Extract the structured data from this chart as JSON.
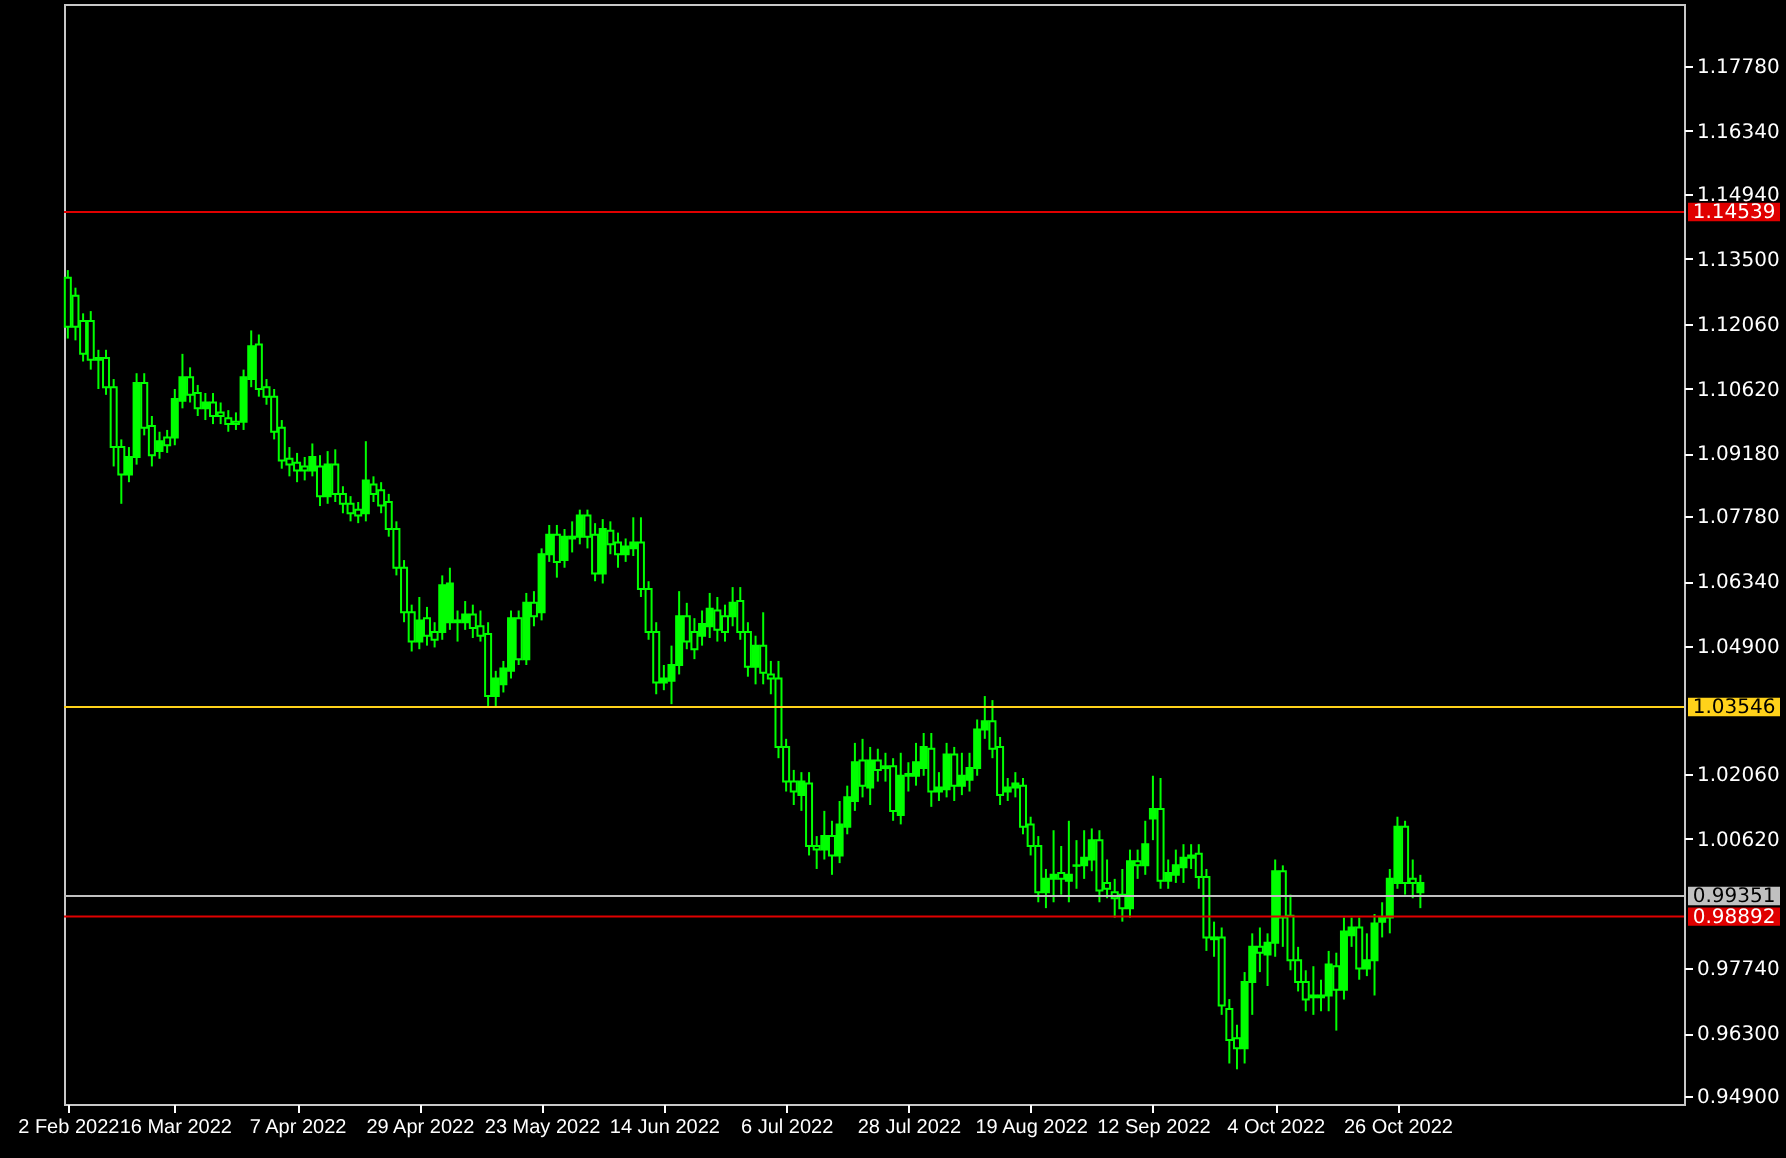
{
  "chart_data": {
    "type": "candlestick",
    "color": "#00ff00",
    "categories": [
      "2 Feb 2022",
      null,
      null,
      null,
      null,
      null,
      null,
      null,
      null,
      null,
      null,
      null,
      null,
      null,
      "16 Mar 2022",
      null,
      null,
      null,
      null,
      null,
      null,
      null,
      null,
      null,
      null,
      null,
      null,
      null,
      null,
      null,
      "7 Apr 2022",
      null,
      null,
      null,
      null,
      null,
      null,
      null,
      null,
      null,
      null,
      null,
      null,
      null,
      null,
      null,
      "29 Apr 2022",
      null,
      null,
      null,
      null,
      null,
      null,
      null,
      null,
      null,
      null,
      null,
      null,
      null,
      null,
      null,
      "23 May 2022",
      null,
      null,
      null,
      null,
      null,
      null,
      null,
      null,
      null,
      null,
      null,
      null,
      null,
      null,
      null,
      "14 Jun 2022",
      null,
      null,
      null,
      null,
      null,
      null,
      null,
      null,
      null,
      null,
      null,
      null,
      null,
      null,
      null,
      "6 Jul 2022",
      null,
      null,
      null,
      null,
      null,
      null,
      null,
      null,
      null,
      null,
      null,
      null,
      null,
      null,
      null,
      "28 Jul 2022",
      null,
      null,
      null,
      null,
      null,
      null,
      null,
      null,
      null,
      null,
      null,
      null,
      null,
      null,
      null,
      "19 Aug 2022",
      null,
      null,
      null,
      null,
      null,
      null,
      null,
      null,
      null,
      null,
      null,
      null,
      null,
      null,
      null,
      "12 Sep 2022",
      null,
      null,
      null,
      null,
      null,
      null,
      null,
      null,
      null,
      null,
      null,
      null,
      null,
      null,
      null,
      "4 Oct 2022",
      null,
      null,
      null,
      null,
      null,
      null,
      null,
      null,
      null,
      null,
      null,
      null,
      null,
      null,
      null,
      "26 Oct 2022",
      null,
      null,
      null,
      null,
      null,
      null,
      null,
      null,
      null,
      null,
      null,
      null,
      null,
      null,
      null,
      null,
      null,
      null,
      null,
      null,
      null,
      null,
      null,
      null,
      null,
      null,
      null,
      null,
      null,
      null,
      null,
      null,
      null,
      null,
      null,
      null,
      null
    ],
    "ohlc": [
      [
        1.1308,
        1.1325,
        1.1173,
        1.1199
      ],
      [
        1.1268,
        1.1286,
        1.1169,
        1.1199
      ],
      [
        1.1212,
        1.1229,
        1.1122,
        1.1139
      ],
      [
        1.1212,
        1.1234,
        1.1104,
        1.1126
      ],
      [
        1.113,
        1.1148,
        1.1061,
        1.1126
      ],
      [
        1.113,
        1.1148,
        1.1048,
        1.1065
      ],
      [
        1.1065,
        1.1083,
        1.0889,
        1.0932
      ],
      [
        1.0932,
        1.0949,
        1.0806,
        1.0871
      ],
      [
        1.0871,
        1.0932,
        1.0854,
        1.091
      ],
      [
        1.091,
        1.1096,
        1.0893,
        1.1074
      ],
      [
        1.1074,
        1.1096,
        1.0958,
        1.0975
      ],
      [
        1.0979,
        1.1001,
        1.0889,
        1.0914
      ],
      [
        1.0923,
        1.0966,
        1.0906,
        1.0945
      ],
      [
        1.0953,
        1.097,
        1.0919,
        1.0936
      ],
      [
        1.0953,
        1.1061,
        1.0936,
        1.1039
      ],
      [
        1.1035,
        1.1139,
        1.1018,
        1.1087
      ],
      [
        1.1087,
        1.1109,
        1.1031,
        1.1048
      ],
      [
        1.1052,
        1.107,
        1.1001,
        1.1018
      ],
      [
        1.1018,
        1.1052,
        1.0992,
        1.1031
      ],
      [
        1.1031,
        1.1052,
        1.0983,
        1.1001
      ],
      [
        1.1009,
        1.1031,
        1.0983,
        1.1001
      ],
      [
        1.0996,
        1.1014,
        1.0966,
        1.0983
      ],
      [
        1.0988,
        1.1009,
        1.097,
        1.0983
      ],
      [
        1.0988,
        1.1104,
        1.097,
        1.1087
      ],
      [
        1.1083,
        1.1191,
        1.1065,
        1.1156
      ],
      [
        1.116,
        1.1182,
        1.1044,
        1.1061
      ],
      [
        1.1065,
        1.1083,
        1.1026,
        1.1044
      ],
      [
        1.1044,
        1.1061,
        1.0949,
        1.0966
      ],
      [
        1.0975,
        1.0992,
        1.0884,
        1.0902
      ],
      [
        1.0906,
        1.0932,
        1.0867,
        1.0893
      ],
      [
        1.0897,
        1.0919,
        1.0854,
        1.088
      ],
      [
        1.0889,
        1.091,
        1.0858,
        1.088
      ],
      [
        1.088,
        1.094,
        1.0867,
        1.091
      ],
      [
        1.0889,
        1.0914,
        1.0801,
        1.0823
      ],
      [
        1.0823,
        1.0923,
        1.0806,
        1.0893
      ],
      [
        1.0893,
        1.0927,
        1.081,
        1.0828
      ],
      [
        1.0828,
        1.0845,
        1.0785,
        1.0806
      ],
      [
        1.0806,
        1.0823,
        1.0767,
        1.0785
      ],
      [
        1.0793,
        1.081,
        1.0763,
        1.078
      ],
      [
        1.0785,
        1.0945,
        1.0767,
        1.0858
      ],
      [
        1.0849,
        1.0867,
        1.081,
        1.0828
      ],
      [
        1.0836,
        1.0854,
        1.0785,
        1.0802
      ],
      [
        1.081,
        1.0828,
        1.0733,
        1.075
      ],
      [
        1.075,
        1.0767,
        1.0647,
        1.0664
      ],
      [
        1.0664,
        1.0681,
        1.0543,
        1.0565
      ],
      [
        1.0565,
        1.0582,
        1.0478,
        1.05
      ],
      [
        1.05,
        1.0599,
        1.0483,
        1.0547
      ],
      [
        1.0552,
        1.0577,
        1.0491,
        1.0513
      ],
      [
        1.0521,
        1.0543,
        1.0487,
        1.0504
      ],
      [
        1.0521,
        1.0647,
        1.0504,
        1.0625
      ],
      [
        1.0543,
        1.0664,
        1.0526,
        1.0629
      ],
      [
        1.0547,
        1.0569,
        1.05,
        1.0543
      ],
      [
        1.0543,
        1.059,
        1.0526,
        1.056
      ],
      [
        1.056,
        1.0582,
        1.0508,
        1.053
      ],
      [
        1.0534,
        1.0569,
        1.05,
        1.0513
      ],
      [
        1.0517,
        1.0543,
        1.0353,
        1.0379
      ],
      [
        1.0379,
        1.0435,
        1.0353,
        1.0418
      ],
      [
        1.0405,
        1.0457,
        1.0387,
        1.044
      ],
      [
        1.0435,
        1.0569,
        1.0418,
        1.0552
      ],
      [
        1.0552,
        1.0569,
        1.0448,
        1.0461
      ],
      [
        1.0461,
        1.0608,
        1.0448,
        1.0586
      ],
      [
        1.0586,
        1.0612,
        1.0534,
        1.0556
      ],
      [
        1.0565,
        1.0707,
        1.0547,
        1.0694
      ],
      [
        1.0694,
        1.0759,
        1.0677,
        1.0737
      ],
      [
        1.0737,
        1.0759,
        1.0642,
        1.0677
      ],
      [
        1.0681,
        1.075,
        1.0664,
        1.0733
      ],
      [
        1.0733,
        1.0767,
        1.0698,
        1.0729
      ],
      [
        1.0733,
        1.0793,
        1.0716,
        1.078
      ],
      [
        1.078,
        1.0793,
        1.0707,
        1.0733
      ],
      [
        1.0737,
        1.0763,
        1.0634,
        1.0651
      ],
      [
        1.0651,
        1.0772,
        1.0629,
        1.075
      ],
      [
        1.0746,
        1.0767,
        1.0694,
        1.0716
      ],
      [
        1.072,
        1.0742,
        1.0664,
        1.0694
      ],
      [
        1.0694,
        1.0729,
        1.0677,
        1.0711
      ],
      [
        1.0707,
        1.0776,
        1.069,
        1.072
      ],
      [
        1.072,
        1.0776,
        1.0599,
        1.0617
      ],
      [
        1.0617,
        1.0634,
        1.0504,
        1.0521
      ],
      [
        1.0521,
        1.0543,
        1.0383,
        1.0409
      ],
      [
        1.0409,
        1.0448,
        1.0392,
        1.0418
      ],
      [
        1.0413,
        1.0491,
        1.0361,
        1.0448
      ],
      [
        1.0448,
        1.0612,
        1.0427,
        1.0556
      ],
      [
        1.0556,
        1.0586,
        1.0483,
        1.05
      ],
      [
        1.0521,
        1.0552,
        1.0461,
        1.0483
      ],
      [
        1.0513,
        1.0569,
        1.0491,
        1.0539
      ],
      [
        1.0534,
        1.0608,
        1.0508,
        1.0573
      ],
      [
        1.0569,
        1.0599,
        1.05,
        1.0526
      ],
      [
        1.0556,
        1.0582,
        1.05,
        1.0521
      ],
      [
        1.0556,
        1.0621,
        1.0534,
        1.0586
      ],
      [
        1.059,
        1.0621,
        1.0504,
        1.0521
      ],
      [
        1.0521,
        1.0543,
        1.0422,
        1.0444
      ],
      [
        1.0444,
        1.0513,
        1.0405,
        1.0491
      ],
      [
        1.0491,
        1.0565,
        1.0405,
        1.0431
      ],
      [
        1.0427,
        1.0457,
        1.0383,
        1.0418
      ],
      [
        1.0418,
        1.0457,
        1.0241,
        1.0266
      ],
      [
        1.0266,
        1.0284,
        1.0167,
        1.0189
      ],
      [
        1.0189,
        1.0215,
        1.0137,
        1.0167
      ],
      [
        1.0159,
        1.021,
        1.0124,
        1.0189
      ],
      [
        1.0185,
        1.021,
        1.0025,
        1.0046
      ],
      [
        1.0046,
        1.0068,
        0.9995,
        1.0038
      ],
      [
        1.0038,
        1.0124,
        1.0016,
        1.0068
      ],
      [
        1.0068,
        1.0102,
        0.9982,
        1.0025
      ],
      [
        1.0025,
        1.0146,
        1.0008,
        1.0094
      ],
      [
        1.0089,
        1.018,
        1.0072,
        1.0154
      ],
      [
        1.0146,
        1.0275,
        1.0124,
        1.0232
      ],
      [
        1.0236,
        1.0284,
        1.0154,
        1.018
      ],
      [
        1.0176,
        1.0266,
        1.0137,
        1.0236
      ],
      [
        1.0236,
        1.0262,
        1.0189,
        1.0215
      ],
      [
        1.0223,
        1.0253,
        1.0189,
        1.0219
      ],
      [
        1.0223,
        1.0241,
        1.0102,
        1.0124
      ],
      [
        1.0115,
        1.0253,
        1.0094,
        1.0202
      ],
      [
        1.0202,
        1.0232,
        1.0167,
        1.0206
      ],
      [
        1.0202,
        1.0275,
        1.018,
        1.0232
      ],
      [
        1.0219,
        1.0297,
        1.0202,
        1.0266
      ],
      [
        1.0262,
        1.0297,
        1.0133,
        1.0167
      ],
      [
        1.0167,
        1.021,
        1.0146,
        1.0176
      ],
      [
        1.0172,
        1.0275,
        1.0154,
        1.0249
      ],
      [
        1.0249,
        1.0266,
        1.0146,
        1.018
      ],
      [
        1.018,
        1.0253,
        1.0159,
        1.0202
      ],
      [
        1.0193,
        1.0253,
        1.0167,
        1.0219
      ],
      [
        1.0219,
        1.0327,
        1.0202,
        1.0305
      ],
      [
        1.0305,
        1.0379,
        1.0284,
        1.0323
      ],
      [
        1.0323,
        1.037,
        1.0241,
        1.0262
      ],
      [
        1.0266,
        1.0288,
        1.0137,
        1.0159
      ],
      [
        1.0167,
        1.0197,
        1.0146,
        1.0176
      ],
      [
        1.0176,
        1.021,
        1.0154,
        1.0185
      ],
      [
        1.018,
        1.0197,
        1.0072,
        1.0089
      ],
      [
        1.0094,
        1.0111,
        1.0025,
        1.0046
      ],
      [
        1.0046,
        1.0068,
        0.9921,
        0.9943
      ],
      [
        0.9943,
        0.9995,
        0.9908,
        0.9973
      ],
      [
        0.9973,
        1.0081,
        0.9921,
        0.9982
      ],
      [
        0.9986,
        1.0046,
        0.9938,
        0.9973
      ],
      [
        0.9969,
        1.0102,
        0.9921,
        0.9982
      ],
      [
        1.0002,
        1.0059,
        0.9951,
        1.0003
      ],
      [
        1.0003,
        1.0081,
        0.9973,
        1.002
      ],
      [
        1.0016,
        1.0085,
        0.999,
        1.0059
      ],
      [
        1.0059,
        1.0081,
        0.9921,
        0.9947
      ],
      [
        0.9964,
        1.0016,
        0.993,
        0.9951
      ],
      [
        0.9943,
        0.9973,
        0.9887,
        0.993
      ],
      [
        0.9938,
        0.9995,
        0.9878,
        0.9908
      ],
      [
        0.9908,
        1.0038,
        0.9887,
        1.0012
      ],
      [
        1.0012,
        1.0038,
        0.9973,
        1.0003
      ],
      [
        1.0003,
        1.0102,
        0.9982,
        1.005
      ],
      [
        1.0107,
        1.0202,
        1.0059,
        1.0128
      ],
      [
        1.0128,
        1.0197,
        0.9951,
        0.9969
      ],
      [
        0.9969,
        1.0016,
        0.9951,
        0.9986
      ],
      [
        0.9982,
        1.0038,
        0.9964,
        1.0003
      ],
      [
        0.9999,
        1.005,
        0.9964,
        1.002
      ],
      [
        1.002,
        1.005,
        0.9995,
        1.0025
      ],
      [
        1.0029,
        1.005,
        0.9951,
        0.9977
      ],
      [
        0.9977,
        0.9995,
        0.9813,
        0.9843
      ],
      [
        0.9843,
        0.9878,
        0.98,
        0.9839
      ],
      [
        0.9843,
        0.9865,
        0.9671,
        0.9692
      ],
      [
        0.9684,
        0.9706,
        0.9563,
        0.9615
      ],
      [
        0.9619,
        0.9649,
        0.955,
        0.9597
      ],
      [
        0.9597,
        0.9766,
        0.9563,
        0.9744
      ],
      [
        0.9744,
        0.9852,
        0.9671,
        0.9822
      ],
      [
        0.9822,
        0.9865,
        0.9766,
        0.9809
      ],
      [
        0.9805,
        0.9852,
        0.9735,
        0.9831
      ],
      [
        0.9831,
        1.0016,
        0.98,
        0.999
      ],
      [
        0.999,
        1.0003,
        0.9822,
        0.9887
      ],
      [
        0.9891,
        0.9938,
        0.977,
        0.9792
      ],
      [
        0.9792,
        0.9822,
        0.9723,
        0.9744
      ],
      [
        0.9744,
        0.977,
        0.9679,
        0.9705
      ],
      [
        0.9714,
        0.9779,
        0.9671,
        0.971
      ],
      [
        0.971,
        0.9749,
        0.9679,
        0.9714
      ],
      [
        0.9714,
        0.9813,
        0.9679,
        0.9783
      ],
      [
        0.9779,
        0.9809,
        0.9636,
        0.9727
      ],
      [
        0.9727,
        0.9887,
        0.9705,
        0.9856
      ],
      [
        0.9848,
        0.9887,
        0.9822,
        0.9865
      ],
      [
        0.9865,
        0.9887,
        0.9749,
        0.9774
      ],
      [
        0.9774,
        0.9852,
        0.9757,
        0.9792
      ],
      [
        0.9792,
        0.9895,
        0.9714,
        0.9874
      ],
      [
        0.9878,
        0.9921,
        0.9843,
        0.9887
      ],
      [
        0.9887,
        0.9995,
        0.9852,
        0.9973
      ],
      [
        0.9964,
        1.0111,
        0.9951,
        1.0089
      ],
      [
        1.0089,
        1.0102,
        0.9938,
        0.9964
      ],
      [
        0.9973,
        1.0016,
        0.993,
        0.9964
      ],
      [
        0.9943,
        0.9982,
        0.9908,
        0.9964
      ],
      null,
      null,
      null,
      null,
      null,
      null,
      null,
      null,
      null,
      null,
      null,
      null,
      null,
      null,
      null,
      null,
      null,
      null,
      null,
      null,
      null,
      null,
      null,
      null,
      null,
      null,
      null,
      null,
      null,
      null,
      null,
      null,
      null,
      null
    ],
    "ylim": [
      0.9473,
      1.1916
    ],
    "yticks": [
      {
        "value": 0.949,
        "label": "0.94900"
      },
      {
        "value": 0.963,
        "label": "0.96300"
      },
      {
        "value": 0.9774,
        "label": "0.97740"
      },
      {
        "value": 1.0062,
        "label": "1.00620"
      },
      {
        "value": 1.0206,
        "label": "1.02060"
      },
      {
        "value": 1.049,
        "label": "1.04900"
      },
      {
        "value": 1.0634,
        "label": "1.06340"
      },
      {
        "value": 1.0778,
        "label": "1.07780"
      },
      {
        "value": 1.0918,
        "label": "1.09180"
      },
      {
        "value": 1.1062,
        "label": "1.10620"
      },
      {
        "value": 1.1206,
        "label": "1.12060"
      },
      {
        "value": 1.135,
        "label": "1.13500"
      },
      {
        "value": 1.1494,
        "label": "1.14940"
      },
      {
        "value": 1.1634,
        "label": "1.16340"
      },
      {
        "value": 1.1778,
        "label": "1.17780"
      }
    ],
    "ref_lines": [
      {
        "axis": "y",
        "value": 1.14539,
        "label": "1.14539",
        "color": "#e00000"
      },
      {
        "axis": "y",
        "value": 1.03546,
        "label": "1.03546",
        "color": "#ffd21a"
      },
      {
        "axis": "y",
        "value": 0.99351,
        "label": "0.99351",
        "color": "#c0c0c0"
      },
      {
        "axis": "y",
        "value": 0.98892,
        "label": "0.98892",
        "color": "#e00000"
      }
    ]
  }
}
